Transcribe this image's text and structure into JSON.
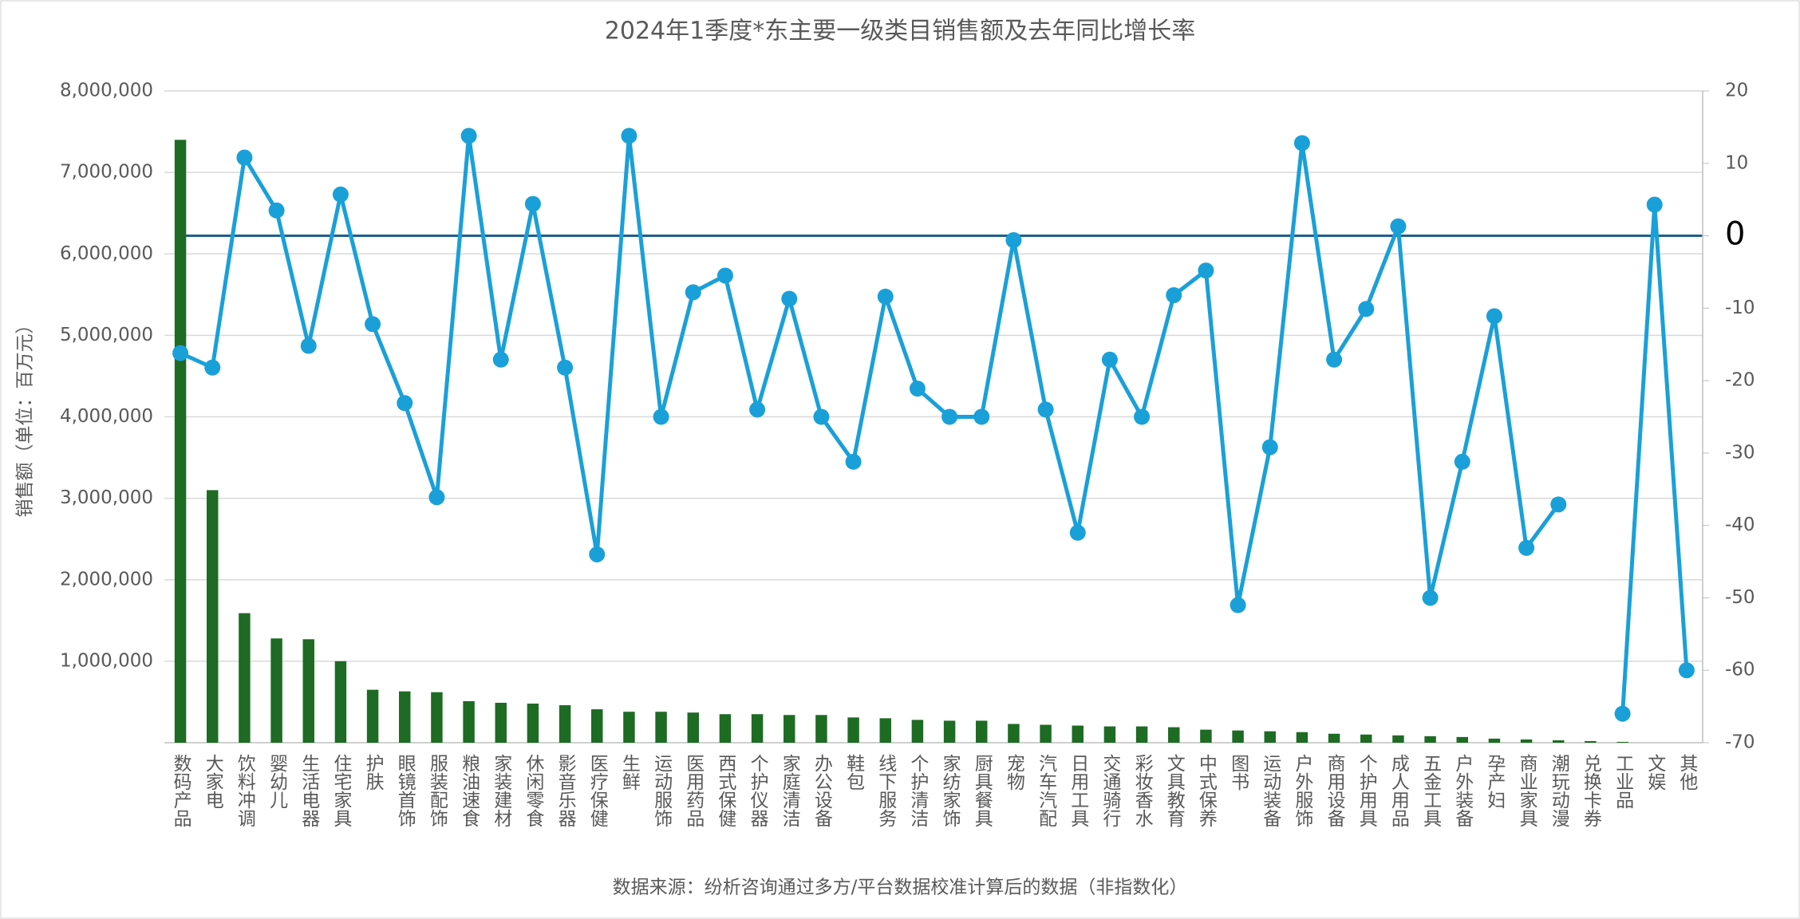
{
  "chart_data": {
    "type": "combo",
    "title": "2024年1季度*东主要一级类目销售额及去年同比增长率",
    "y_label": "销售额（单位：百万元）",
    "source": "数据来源：纷析咨询通过多方/平台数据校准计算后的数据（非指数化）",
    "categories": [
      "数码产品",
      "大家电",
      "饮料冲调",
      "婴幼儿",
      "生活电器",
      "住宅家具",
      "护肤",
      "眼镜首饰",
      "服装配饰",
      "粮油速食",
      "家装建材",
      "休闲零食",
      "影音乐器",
      "医疗保健",
      "生鲜",
      "运动服饰",
      "医用药品",
      "西式保健",
      "个护仪器",
      "家庭清洁",
      "办公设备",
      "鞋包",
      "线下服务",
      "个护清洁",
      "家纺家饰",
      "厨具餐具",
      "宠物",
      "汽车汽配",
      "日用工具",
      "交通骑行",
      "彩妆香水",
      "文具教育",
      "中式保养",
      "图书",
      "运动装备",
      "户外服饰",
      "商用设备",
      "个护用具",
      "成人用品",
      "五金工具",
      "户外装备",
      "孕产妇",
      "商业家具",
      "潮玩动漫",
      "兑换卡券",
      "工业品",
      "文娱",
      "其他"
    ],
    "series": [
      {
        "type": "bar",
        "color": "#1e6b24",
        "values": [
          7400000,
          3100000,
          1590000,
          1280000,
          1270000,
          1000000,
          650000,
          630000,
          620000,
          510000,
          490000,
          480000,
          460000,
          410000,
          380000,
          380000,
          370000,
          350000,
          350000,
          340000,
          340000,
          310000,
          300000,
          280000,
          270000,
          270000,
          230000,
          220000,
          210000,
          200000,
          200000,
          190000,
          160000,
          150000,
          140000,
          130000,
          110000,
          100000,
          90000,
          80000,
          70000,
          50000,
          40000,
          30000,
          20000,
          10000,
          0,
          0
        ]
      },
      {
        "type": "line",
        "axis": "y2",
        "color": "#1aa0d8",
        "values": [
          -16.2,
          -18.2,
          10.8,
          3.5,
          -15.2,
          5.7,
          -12.2,
          -23.1,
          -36.1,
          13.8,
          -17.1,
          4.4,
          -18.2,
          -44,
          13.8,
          -25,
          -7.8,
          -5.5,
          -24,
          -8.7,
          -25,
          -31.2,
          -8.4,
          -21.1,
          -25,
          -25,
          -0.6,
          -24,
          -41,
          -17.1,
          -25,
          -8.2,
          -4.8,
          -51,
          -29.2,
          12.8,
          -17.1,
          -10.1,
          1.3,
          -50,
          -31.2,
          -11.1,
          -43.1,
          -37.1,
          null,
          -66,
          4.3,
          -60
        ]
      }
    ],
    "ylim": [
      0,
      8000000
    ],
    "yticks": [
      {
        "value": 1000000,
        "label": "1,000,000"
      },
      {
        "value": 2000000,
        "label": "2,000,000"
      },
      {
        "value": 3000000,
        "label": "3,000,000"
      },
      {
        "value": 4000000,
        "label": "4,000,000"
      },
      {
        "value": 5000000,
        "label": "5,000,000"
      },
      {
        "value": 6000000,
        "label": "6,000,000"
      },
      {
        "value": 7000000,
        "label": "7,000,000"
      },
      {
        "value": 8000000,
        "label": "8,000,000"
      }
    ],
    "y2lim": [
      -70,
      20
    ],
    "y2ticks": [
      20,
      10,
      0,
      -10,
      -20,
      -30,
      -40,
      -50,
      -60,
      -70
    ],
    "grid": true,
    "zero_line_color": "#1f5f8b"
  }
}
